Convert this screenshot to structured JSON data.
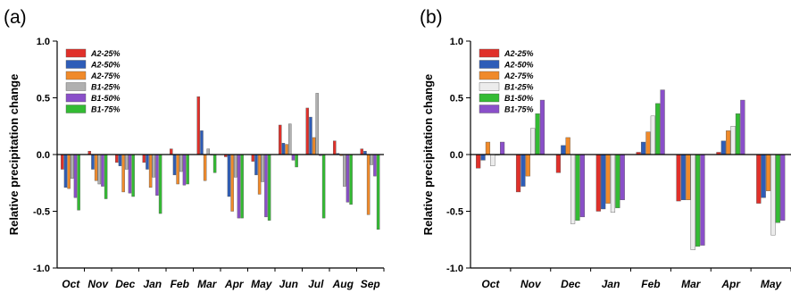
{
  "colors": {
    "A2-25%": "#e0302a",
    "A2-50%": "#2e5db8",
    "A2-75%": "#f08a2a",
    "B1-25%": "#b0b0b0",
    "B1-50%": "#8a4fc9",
    "B1-75%": "#33bb33",
    "B1-25%-b": "#ececec"
  },
  "chart_data": [
    {
      "type": "bar",
      "panel_label": "(a)",
      "ylabel": "Relative precipitation change",
      "ylim": [
        -1.0,
        1.0
      ],
      "yticks": [
        "1.0",
        "0.5",
        "0.0",
        "-0.5",
        "-1.0"
      ],
      "ytick_values": [
        1.0,
        0.5,
        0.0,
        -0.5,
        -1.0
      ],
      "categories": [
        "Oct",
        "Nov",
        "Dec",
        "Jan",
        "Feb",
        "Mar",
        "Apr",
        "May",
        "Jun",
        "Jul",
        "Aug",
        "Sep"
      ],
      "legend": "top-left",
      "series": [
        {
          "name": "A2-25%",
          "color": "A2-25%",
          "values": [
            -0.13,
            0.03,
            -0.07,
            -0.07,
            0.05,
            0.51,
            -0.02,
            -0.06,
            0.26,
            0.41,
            0.12,
            0.05
          ]
        },
        {
          "name": "A2-50%",
          "color": "A2-50%",
          "values": [
            -0.29,
            -0.13,
            -0.1,
            -0.13,
            -0.18,
            0.21,
            -0.37,
            -0.18,
            0.1,
            0.33,
            0.01,
            0.03
          ]
        },
        {
          "name": "A2-75%",
          "color": "A2-75%",
          "values": [
            -0.3,
            -0.23,
            -0.33,
            -0.29,
            -0.26,
            -0.23,
            -0.5,
            -0.35,
            0.09,
            0.15,
            -0.01,
            -0.53
          ]
        },
        {
          "name": "B1-25%",
          "color": "B1-25%",
          "values": [
            -0.21,
            -0.26,
            -0.13,
            -0.2,
            -0.15,
            0.05,
            -0.2,
            -0.24,
            0.27,
            0.54,
            -0.28,
            -0.09
          ]
        },
        {
          "name": "B1-50%",
          "color": "B1-50%",
          "values": [
            -0.38,
            -0.28,
            -0.34,
            -0.36,
            -0.27,
            0.0,
            -0.56,
            -0.55,
            -0.05,
            -0.01,
            -0.42,
            -0.19
          ]
        },
        {
          "name": "B1-75%",
          "color": "B1-75%",
          "values": [
            -0.49,
            -0.39,
            -0.37,
            -0.52,
            -0.26,
            -0.16,
            -0.56,
            -0.58,
            -0.11,
            -0.56,
            -0.44,
            -0.66
          ]
        }
      ]
    },
    {
      "type": "bar",
      "panel_label": "(b)",
      "ylabel": "Relative precipitation change",
      "ylim": [
        -1.0,
        1.0
      ],
      "yticks": [
        "1.0",
        "0.5",
        "0.0",
        "-0.5",
        "-1.0"
      ],
      "ytick_values": [
        1.0,
        0.5,
        0.0,
        -0.5,
        -1.0
      ],
      "categories": [
        "Oct",
        "Nov",
        "Dec",
        "Jan",
        "Feb",
        "Mar",
        "Apr",
        "May"
      ],
      "legend": "top-left",
      "series": [
        {
          "name": "A2-25%",
          "color": "A2-25%",
          "values": [
            -0.12,
            -0.33,
            -0.16,
            -0.5,
            0.02,
            -0.41,
            0.02,
            -0.43
          ]
        },
        {
          "name": "A2-50%",
          "color": "A2-50%",
          "values": [
            -0.05,
            -0.28,
            0.08,
            -0.48,
            0.11,
            -0.4,
            0.12,
            -0.38
          ]
        },
        {
          "name": "A2-75%",
          "color": "A2-75%",
          "values": [
            0.11,
            -0.19,
            0.15,
            -0.43,
            0.2,
            -0.4,
            0.21,
            -0.32
          ]
        },
        {
          "name": "B1-25%",
          "color": "B1-25%-b",
          "values": [
            -0.1,
            0.23,
            -0.61,
            -0.51,
            0.34,
            -0.84,
            0.25,
            -0.71
          ]
        },
        {
          "name": "B1-50%",
          "color": "B1-75%",
          "values": [
            0.0,
            0.36,
            -0.58,
            -0.47,
            0.45,
            -0.81,
            0.36,
            -0.6
          ]
        },
        {
          "name": "B1-75%",
          "color": "B1-50%",
          "values": [
            0.11,
            0.48,
            -0.55,
            -0.4,
            0.57,
            -0.8,
            0.48,
            -0.58
          ]
        }
      ]
    }
  ]
}
